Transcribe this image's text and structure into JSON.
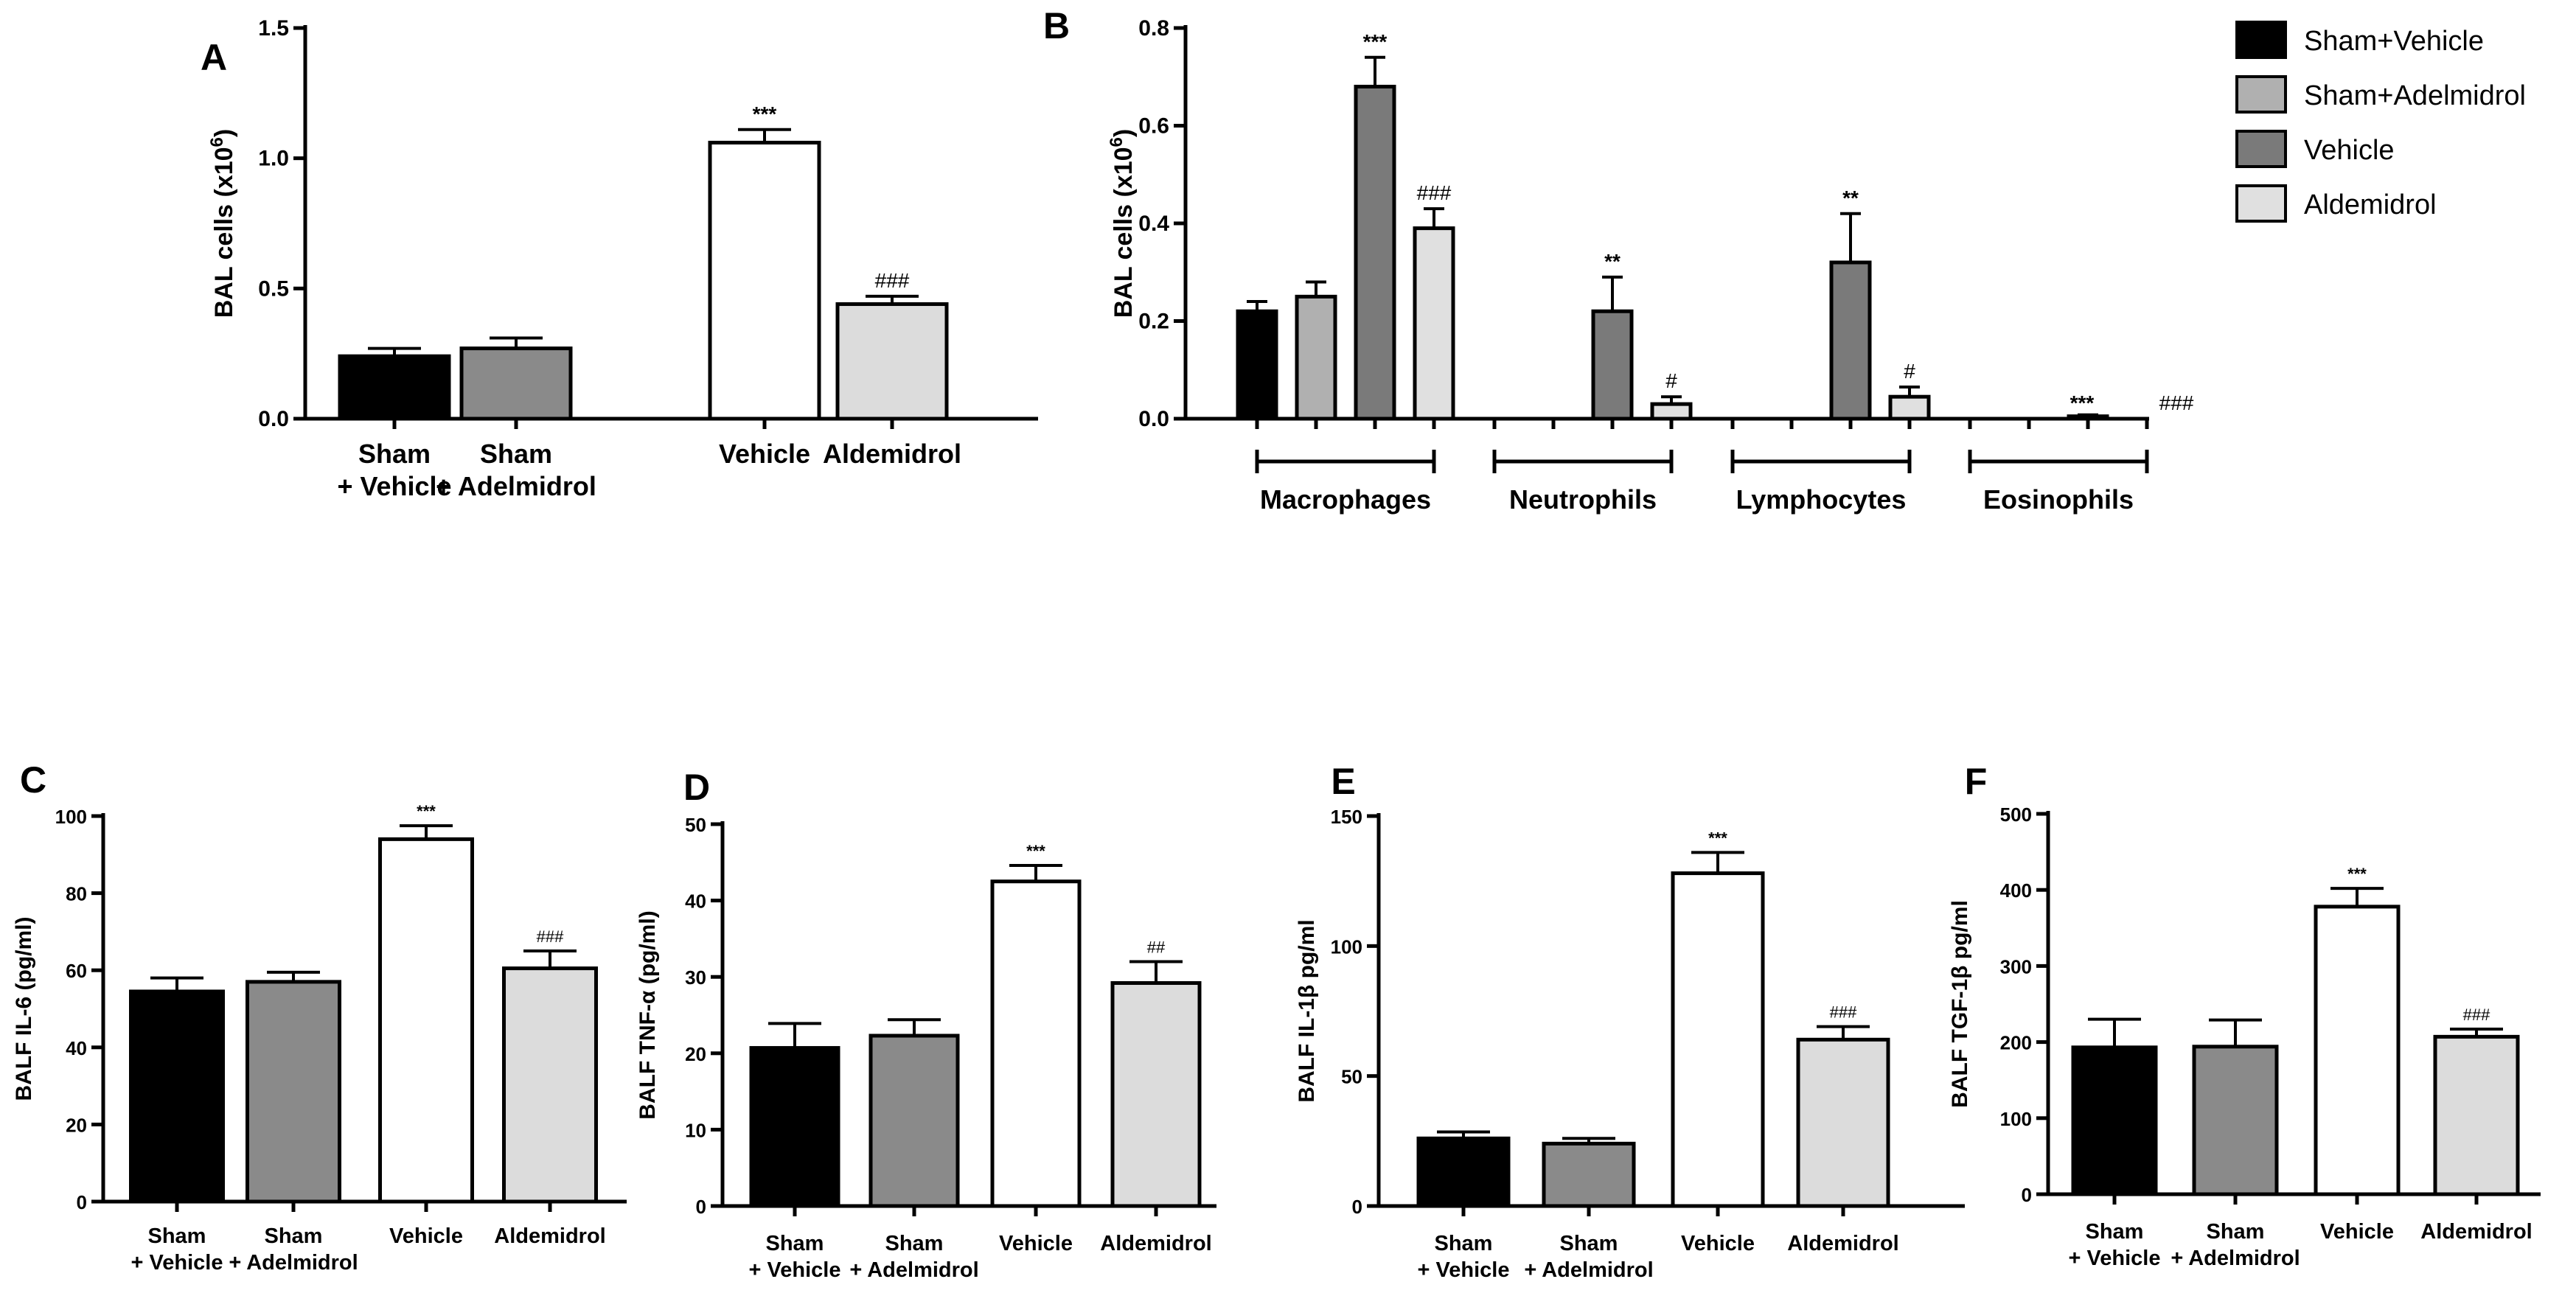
{
  "colors": {
    "sham_vehicle": "#000000",
    "sham_adelmidrol": "#8a8a8a",
    "vehicle": "#ffffff",
    "aldemidrol": "#dcdcdc",
    "B_sham_adelmidrol": "#b0b0b0",
    "B_vehicle": "#7a7a7a",
    "B_aldemidrol": "#e0e0e0"
  },
  "chart_data": [
    {
      "id": "A",
      "panel_label": "A",
      "type": "bar",
      "ylabel": "BAL cells (x10",
      "ylabel_sup": "6",
      "ylabel_end": ")",
      "ylim": [
        0,
        1.5
      ],
      "yticks": [
        "0.0",
        "0.5",
        "1.0",
        "1.5"
      ],
      "categories": [
        {
          "line1": "Sham",
          "line2": "+ Vehicle"
        },
        {
          "line1": "Sham",
          "line2": "+ Adelmidrol"
        },
        {
          "line1": "Vehicle",
          "line2": ""
        },
        {
          "line1": "Aldemidrol",
          "line2": ""
        }
      ],
      "values": [
        0.24,
        0.27,
        1.06,
        0.44
      ],
      "errors": [
        0.03,
        0.04,
        0.05,
        0.03
      ],
      "annotations": [
        "",
        "",
        "***",
        "###"
      ]
    },
    {
      "id": "B",
      "panel_label": "B",
      "type": "bar",
      "ylabel": "BAL cells (x10",
      "ylabel_sup": "6",
      "ylabel_end": ")",
      "ylim": [
        0,
        0.8
      ],
      "yticks": [
        "0.0",
        "0.2",
        "0.4",
        "0.6",
        "0.8"
      ],
      "groups": [
        "Macrophages",
        "Neutrophils",
        "Lymphocytes",
        "Eosinophils"
      ],
      "series": [
        {
          "name": "Sham+Vehicle",
          "values": [
            0.22,
            0.0,
            0.0,
            0.0
          ],
          "errors": [
            0.02,
            0,
            0,
            0
          ],
          "annotations": [
            "",
            "",
            "",
            ""
          ]
        },
        {
          "name": "Sham+Adelmidrol",
          "values": [
            0.25,
            0.0,
            0.0,
            0.0
          ],
          "errors": [
            0.03,
            0,
            0,
            0
          ],
          "annotations": [
            "",
            "",
            "",
            ""
          ]
        },
        {
          "name": "Vehicle",
          "values": [
            0.68,
            0.22,
            0.32,
            0.005
          ],
          "errors": [
            0.06,
            0.07,
            0.1,
            0.003
          ],
          "annotations": [
            "***",
            "**",
            "**",
            "***"
          ]
        },
        {
          "name": "Aldemidrol",
          "values": [
            0.39,
            0.03,
            0.045,
            0.0
          ],
          "errors": [
            0.04,
            0.015,
            0.02,
            0
          ],
          "annotations": [
            "###",
            "#",
            "#",
            "###"
          ]
        }
      ]
    },
    {
      "id": "C",
      "panel_label": "C",
      "type": "bar",
      "ylabel": "BALF IL-6 (pg/ml)",
      "ylim": [
        0,
        100
      ],
      "yticks": [
        "0",
        "20",
        "40",
        "60",
        "80",
        "100"
      ],
      "categories": [
        {
          "line1": "Sham",
          "line2": "+ Vehicle"
        },
        {
          "line1": "Sham",
          "line2": "+ Adelmidrol"
        },
        {
          "line1": "Vehicle",
          "line2": ""
        },
        {
          "line1": "Aldemidrol",
          "line2": ""
        }
      ],
      "values": [
        54.5,
        57,
        94,
        60.5
      ],
      "errors": [
        3.5,
        2.5,
        3.5,
        4.5
      ],
      "annotations": [
        "",
        "",
        "***",
        "###"
      ]
    },
    {
      "id": "D",
      "panel_label": "D",
      "type": "bar",
      "ylabel": "BALF TNF-α (pg/ml)",
      "ylim": [
        0,
        50
      ],
      "yticks": [
        "0",
        "10",
        "20",
        "30",
        "40",
        "50"
      ],
      "categories": [
        {
          "line1": "Sham",
          "line2": "+ Vehicle"
        },
        {
          "line1": "Sham",
          "line2": "+ Adelmidrol"
        },
        {
          "line1": "Vehicle",
          "line2": ""
        },
        {
          "line1": "Aldemidrol",
          "line2": ""
        }
      ],
      "values": [
        20.7,
        22.3,
        42.5,
        29.2
      ],
      "errors": [
        3.2,
        2.1,
        2.1,
        2.8
      ],
      "annotations": [
        "",
        "",
        "***",
        "##"
      ]
    },
    {
      "id": "E",
      "panel_label": "E",
      "type": "bar",
      "ylabel": "BALF IL-1β  pg/ml",
      "ylim": [
        0,
        150
      ],
      "yticks": [
        "0",
        "50",
        "100",
        "150"
      ],
      "categories": [
        {
          "line1": "Sham",
          "line2": "+ Vehicle"
        },
        {
          "line1": "Sham",
          "line2": "+ Adelmidrol"
        },
        {
          "line1": "Vehicle",
          "line2": ""
        },
        {
          "line1": "Aldemidrol",
          "line2": ""
        }
      ],
      "values": [
        26,
        24,
        128,
        64
      ],
      "errors": [
        2.5,
        2,
        8,
        5
      ],
      "annotations": [
        "",
        "",
        "***",
        "###"
      ]
    },
    {
      "id": "F",
      "panel_label": "F",
      "type": "bar",
      "ylabel": "BALF TGF-1β  pg/ml",
      "ylim": [
        0,
        500
      ],
      "yticks": [
        "0",
        "100",
        "200",
        "300",
        "400",
        "500"
      ],
      "categories": [
        {
          "line1": "Sham",
          "line2": "+ Vehicle"
        },
        {
          "line1": "Sham",
          "line2": "+ Adelmidrol"
        },
        {
          "line1": "Vehicle",
          "line2": ""
        },
        {
          "line1": "Aldemidrol",
          "line2": ""
        }
      ],
      "values": [
        193,
        194,
        378,
        207
      ],
      "errors": [
        37,
        35,
        24,
        10
      ],
      "annotations": [
        "",
        "",
        "***",
        "###"
      ]
    }
  ]
}
